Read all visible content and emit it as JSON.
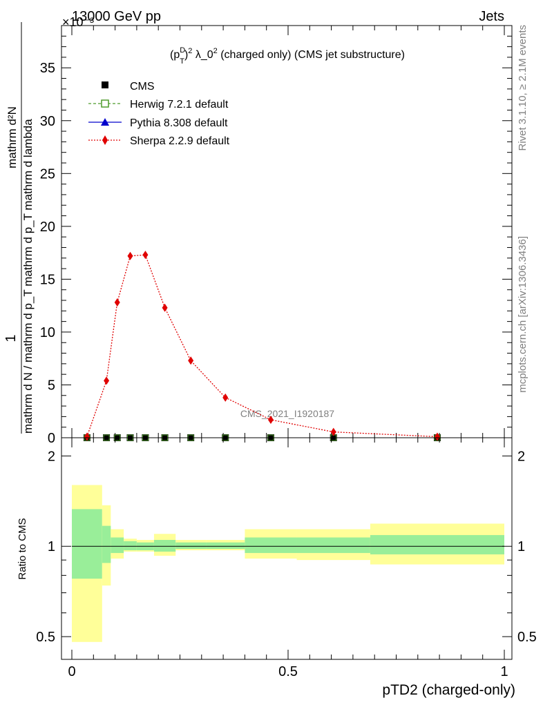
{
  "header": {
    "energy_label": "13000 GeV pp",
    "process_label": "Jets",
    "exponent_label": "×10⁻³"
  },
  "side_labels": {
    "rivet": "Rivet 3.1.10, ≥ 2.1M events",
    "mcplots": "mcplots.cern.ch [arXiv:1306.3436]"
  },
  "watermark": "CMS_2021_I1920187",
  "chart_data": [
    {
      "type": "scatter",
      "title": "(p_T^D)^2 λ_0^2 (charged only) (CMS jet substructure)",
      "ylabel_numerator": "1",
      "ylabel_denominator": "mathrm d N / mathrm d p_T mathrm d p_T mathrm d lambda",
      "ylabel_top": "mathrm d²N",
      "ylabel_full": "mathrm d²N / mathrm d p_T mathrm d lambda",
      "y_scale_note": "×10⁻³",
      "xlim": [
        0,
        1
      ],
      "ylim": [
        0,
        39
      ],
      "yticks": [
        0,
        5,
        10,
        15,
        20,
        25,
        30,
        35
      ],
      "ytick_labels": [
        "0",
        "5",
        "10",
        "15",
        "20",
        "25",
        "30",
        "35"
      ],
      "legend": [
        {
          "name": "CMS",
          "color": "#000000",
          "marker": "filled-square"
        },
        {
          "name": "Herwig 7.2.1 default",
          "color": "#4d9a2a",
          "marker": "open-square"
        },
        {
          "name": "Pythia 8.308 default",
          "color": "#0000cc",
          "marker": "filled-triangle"
        },
        {
          "name": "Sherpa 2.2.9 default",
          "color": "#e00000",
          "marker": "filled-diamond"
        }
      ],
      "legend_position": "top-left",
      "series": [
        {
          "name": "CMS",
          "x": [
            0.035,
            0.08,
            0.105,
            0.135,
            0.17,
            0.215,
            0.275,
            0.355,
            0.46,
            0.605,
            0.845
          ],
          "y": [
            0,
            0,
            0,
            0,
            0,
            0,
            0,
            0,
            0,
            0,
            0
          ]
        },
        {
          "name": "Sherpa 2.2.9 default",
          "x": [
            0.035,
            0.08,
            0.105,
            0.135,
            0.17,
            0.215,
            0.275,
            0.355,
            0.46,
            0.605,
            0.845
          ],
          "y": [
            0.1,
            5.4,
            12.8,
            17.2,
            17.3,
            12.3,
            7.3,
            3.8,
            1.7,
            0.55,
            0.1
          ]
        }
      ]
    },
    {
      "type": "area",
      "ylabel": "Ratio to CMS",
      "xlabel": "pTD2 (charged-only)",
      "xlim": [
        0,
        1
      ],
      "xticks": [
        0,
        0.5,
        1
      ],
      "xtick_labels": [
        "0",
        "0.5",
        "1"
      ],
      "ylim": [
        0.42,
        2.3
      ],
      "yticks": [
        0.5,
        1,
        2
      ],
      "ytick_labels": [
        "0.5",
        "1",
        "2"
      ],
      "log_y": true,
      "reference_line": 1,
      "bins": [
        {
          "x0": 0.0,
          "x1": 0.07,
          "stat_lo": 0.78,
          "stat_hi": 1.33,
          "tot_lo": 0.48,
          "tot_hi": 1.6
        },
        {
          "x0": 0.07,
          "x1": 0.09,
          "stat_lo": 0.88,
          "stat_hi": 1.17,
          "tot_lo": 0.74,
          "tot_hi": 1.37
        },
        {
          "x0": 0.09,
          "x1": 0.12,
          "stat_lo": 0.95,
          "stat_hi": 1.07,
          "tot_lo": 0.91,
          "tot_hi": 1.14
        },
        {
          "x0": 0.12,
          "x1": 0.15,
          "stat_lo": 0.97,
          "stat_hi": 1.04,
          "tot_lo": 0.96,
          "tot_hi": 1.06
        },
        {
          "x0": 0.15,
          "x1": 0.19,
          "stat_lo": 0.97,
          "stat_hi": 1.03,
          "tot_lo": 0.96,
          "tot_hi": 1.05
        },
        {
          "x0": 0.19,
          "x1": 0.24,
          "stat_lo": 0.96,
          "stat_hi": 1.05,
          "tot_lo": 0.93,
          "tot_hi": 1.1
        },
        {
          "x0": 0.24,
          "x1": 0.31,
          "stat_lo": 0.98,
          "stat_hi": 1.03,
          "tot_lo": 0.97,
          "tot_hi": 1.05
        },
        {
          "x0": 0.31,
          "x1": 0.4,
          "stat_lo": 0.98,
          "stat_hi": 1.03,
          "tot_lo": 0.97,
          "tot_hi": 1.05
        },
        {
          "x0": 0.4,
          "x1": 0.52,
          "stat_lo": 0.95,
          "stat_hi": 1.07,
          "tot_lo": 0.91,
          "tot_hi": 1.14
        },
        {
          "x0": 0.52,
          "x1": 0.69,
          "stat_lo": 0.95,
          "stat_hi": 1.07,
          "tot_lo": 0.9,
          "tot_hi": 1.14
        },
        {
          "x0": 0.69,
          "x1": 1.0,
          "stat_lo": 0.94,
          "stat_hi": 1.09,
          "tot_lo": 0.87,
          "tot_hi": 1.19
        }
      ],
      "colors": {
        "stat": "#99ee99",
        "total": "#ffff99"
      }
    }
  ]
}
